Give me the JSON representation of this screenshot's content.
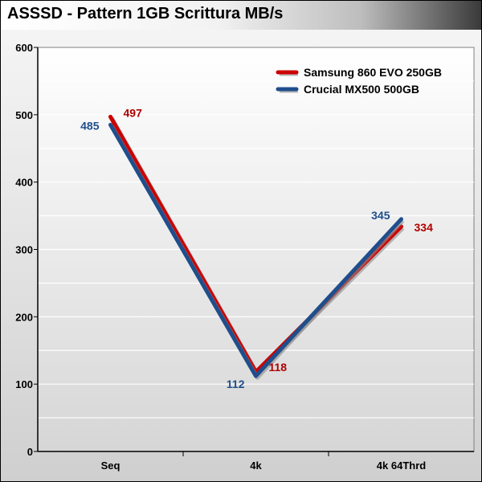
{
  "chart_data": {
    "type": "line",
    "title": "ASSSD - Pattern 1GB Scrittura MB/s",
    "categories": [
      "Seq",
      "4k",
      "4k 64Thrd"
    ],
    "series": [
      {
        "name": "Samsung 860 EVO 250GB",
        "values": [
          497,
          118,
          334
        ],
        "color": "#cc0000",
        "label_color": "#b00000"
      },
      {
        "name": "Crucial MX500 500GB",
        "values": [
          485,
          112,
          345
        ],
        "color": "#1f4e8c",
        "label_color": "#1f4e8c"
      }
    ],
    "ylim": [
      0,
      600
    ],
    "yticks": [
      0,
      100,
      200,
      300,
      400,
      500,
      600
    ],
    "grid": true,
    "legend_position": "top-right"
  }
}
